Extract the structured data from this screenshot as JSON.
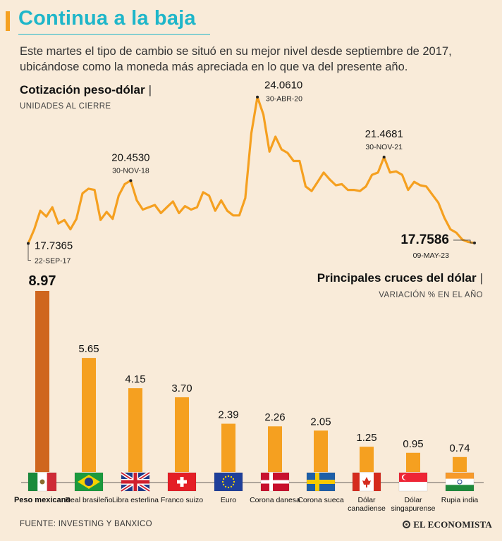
{
  "header": {
    "title": "Continua a la baja",
    "subtitle": "Este martes el tipo de cambio se situó en su mejor nivel desde septiembre de 2017, ubicándose como la moneda más apreciada en lo que va del presente año."
  },
  "colors": {
    "accent": "#1fb6c9",
    "line": "#f5a020",
    "bar": "#f5a020",
    "bar_highlight": "#cf661e",
    "background": "#f9ebd9"
  },
  "chart_data": [
    {
      "type": "line",
      "title": "Cotización peso-dólar",
      "subtitle": "UNIDADES AL CIERRE",
      "xlabel": "",
      "ylabel": "",
      "ylim": [
        17.3,
        24.6
      ],
      "values": [
        17.7365,
        18.35,
        19.15,
        18.9,
        19.3,
        18.6,
        18.75,
        18.35,
        18.8,
        19.9,
        20.1,
        20.05,
        18.75,
        19.1,
        18.8,
        19.8,
        20.3,
        20.453,
        19.6,
        19.2,
        19.3,
        19.4,
        19.05,
        19.3,
        19.55,
        19.05,
        19.35,
        19.2,
        19.3,
        19.95,
        19.8,
        19.15,
        19.6,
        19.15,
        18.95,
        18.95,
        19.7,
        22.5,
        24.061,
        23.3,
        21.7,
        22.35,
        21.8,
        21.65,
        21.3,
        21.3,
        20.2,
        20.0,
        20.4,
        20.8,
        20.5,
        20.25,
        20.3,
        20.05,
        20.05,
        20.0,
        20.2,
        20.7,
        20.8,
        21.4681,
        20.8,
        20.85,
        20.7,
        20.05,
        20.4,
        20.25,
        20.2,
        19.85,
        19.5,
        18.85,
        18.35,
        18.2,
        17.9,
        17.8,
        17.7586
      ],
      "annotations": [
        {
          "index": 0,
          "value": "17.7365",
          "date": "22-SEP-17",
          "pos": "below-right"
        },
        {
          "index": 17,
          "value": "20.4530",
          "date": "30-NOV-18",
          "pos": "above"
        },
        {
          "index": 38,
          "value": "24.0610",
          "date": "30-ABR-20",
          "pos": "above-right"
        },
        {
          "index": 59,
          "value": "21.4681",
          "date": "30-NOV-21",
          "pos": "above"
        },
        {
          "index": 74,
          "value": "17.7586",
          "date": "09-MAY-23",
          "pos": "below-left"
        }
      ]
    },
    {
      "type": "bar",
      "title": "Principales cruces del dólar",
      "subtitle": "VARIACIÓN % EN EL AÑO",
      "categories": [
        "Peso mexicano",
        "Real brasileño",
        "Libra esterlina",
        "Franco suizo",
        "Euro",
        "Corona danesa",
        "Corona sueca",
        "Dólar canadiense",
        "Dólar singapurense",
        "Rupia india"
      ],
      "values": [
        8.97,
        5.65,
        4.15,
        3.7,
        2.39,
        2.26,
        2.05,
        1.25,
        0.95,
        0.74
      ],
      "labels": [
        "8.97",
        "5.65",
        "4.15",
        "3.70",
        "2.39",
        "2.26",
        "2.05",
        "1.25",
        "0.95",
        "0.74"
      ],
      "flags": [
        "mexico-flag",
        "brazil-flag",
        "uk-flag",
        "switzerland-flag",
        "eu-flag",
        "denmark-flag",
        "sweden-flag",
        "canada-flag",
        "singapore-flag",
        "india-flag"
      ],
      "ylim": [
        0,
        9
      ],
      "xlabel": "",
      "ylabel": ""
    }
  ],
  "footer": {
    "source": "FUENTE: INVESTING Y BANXICO",
    "brand": "EL ECONOMISTA"
  }
}
